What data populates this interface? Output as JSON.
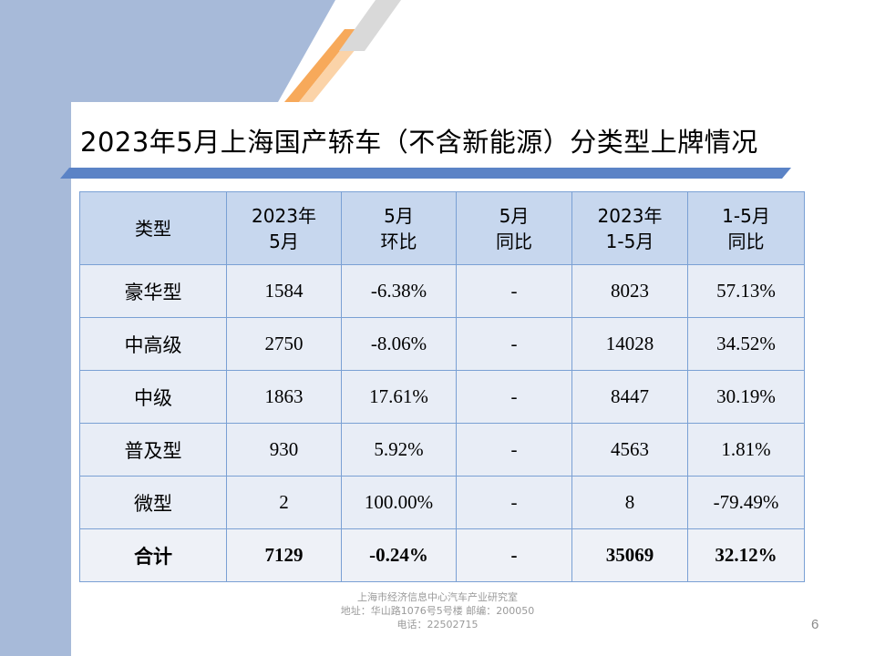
{
  "slide": {
    "title": "2023年5月上海国产轿车（不含新能源）分类型上牌情况",
    "page_number": "6"
  },
  "table": {
    "headers": [
      [
        "类型",
        ""
      ],
      [
        "2023年",
        "5月"
      ],
      [
        "5月",
        "环比"
      ],
      [
        "5月",
        "同比"
      ],
      [
        "2023年",
        "1-5月"
      ],
      [
        "1-5月",
        "同比"
      ]
    ],
    "rows": [
      {
        "type": "豪华型",
        "may": "1584",
        "mom": "-6.38%",
        "yoy": "-",
        "ytd": "8023",
        "ytd_yoy": "57.13%"
      },
      {
        "type": "中高级",
        "may": "2750",
        "mom": "-8.06%",
        "yoy": "-",
        "ytd": "14028",
        "ytd_yoy": "34.52%"
      },
      {
        "type": "中级",
        "may": "1863",
        "mom": "17.61%",
        "yoy": "-",
        "ytd": "8447",
        "ytd_yoy": "30.19%"
      },
      {
        "type": "普及型",
        "may": "930",
        "mom": "5.92%",
        "yoy": "-",
        "ytd": "4563",
        "ytd_yoy": "1.81%"
      },
      {
        "type": "微型",
        "may": "2",
        "mom": "100.00%",
        "yoy": "-",
        "ytd": "8",
        "ytd_yoy": "-79.49%"
      }
    ],
    "total": {
      "type": "合计",
      "may": "7129",
      "mom": "-0.24%",
      "yoy": "-",
      "ytd": "35069",
      "ytd_yoy": "32.12%"
    }
  },
  "footer": {
    "org": "上海市经济信息中心汽车产业研究室",
    "address": "地址：华山路1076号5号楼   邮编：200050",
    "phone": "电话：22502715"
  },
  "colors": {
    "side_band": "#a7bad9",
    "accent_orange": "#f7a95a",
    "title_bar": "#5b83c6",
    "header_fill": "#c7d7ee",
    "row_fill": "#e8edf6",
    "grid_line": "#7aa0d4"
  }
}
